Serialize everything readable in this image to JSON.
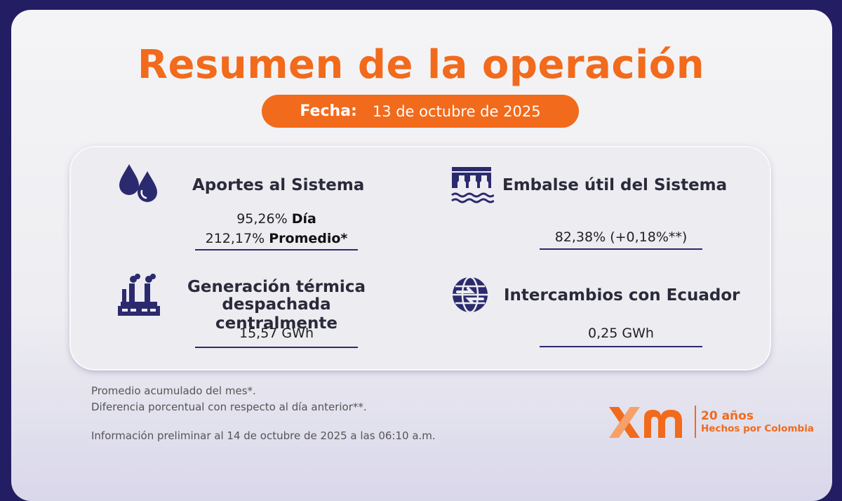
{
  "title": "Resumen de la operación",
  "date": {
    "label": "Fecha:",
    "value": "13 de octubre de 2025"
  },
  "cards": {
    "aportes": {
      "heading": "Aportes al Sistema",
      "line1_value": "95,26%",
      "line1_label": "Día",
      "line2_value": "212,17%",
      "line2_label": "Promedio*",
      "icon": "water-drops-icon"
    },
    "embalse": {
      "heading": "Embalse útil del Sistema",
      "value": "82,38% (+0,18%**)",
      "icon": "dam-icon"
    },
    "termica": {
      "heading_line1": "Generación térmica",
      "heading_line2": "despachada centralmente",
      "value": "15,57 GWh",
      "icon": "factory-icon"
    },
    "ecuador": {
      "heading": "Intercambios con Ecuador",
      "value": "0,25 GWh",
      "icon": "globe-exchange-icon"
    }
  },
  "footnotes": {
    "note1": "Promedio acumulado del mes*.",
    "note2": "Diferencia porcentual con respecto al día anterior**.",
    "note3": "Información preliminar al 14 de octubre de 2025 a las 06:10 a.m."
  },
  "logo": {
    "brand": "xm",
    "years": "20 años",
    "tagline": "Hechos por Colombia"
  },
  "colors": {
    "accent": "#f26a1b",
    "navy": "#231d63",
    "icon": "#2c2a6e"
  }
}
